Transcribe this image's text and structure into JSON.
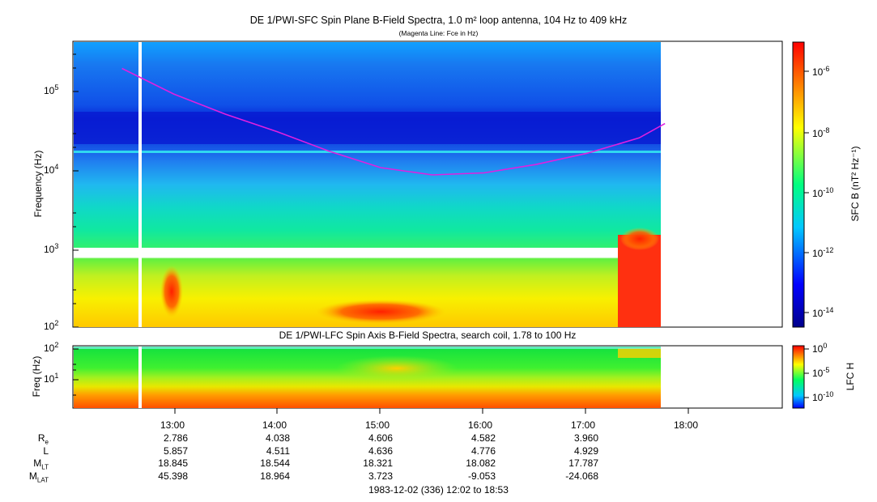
{
  "top_panel": {
    "title": "DE 1/PWI-SFC  Spin Plane B-Field Spectra, 1.0 m² loop antenna, 104 Hz to 409 kHz",
    "subtitle": "(Magenta Line: Fce in Hz)",
    "ylabel": "Frequency (Hz)",
    "yticks": [
      {
        "base": "10",
        "exp": "2"
      },
      {
        "base": "10",
        "exp": "3"
      },
      {
        "base": "10",
        "exp": "4"
      },
      {
        "base": "10",
        "exp": "5"
      }
    ],
    "colorbar_label": "SFC B (nT² Hz⁻¹)",
    "colorbar_ticks": [
      {
        "base": "10",
        "exp": "-6"
      },
      {
        "base": "10",
        "exp": "-8"
      },
      {
        "base": "10",
        "exp": "-10"
      },
      {
        "base": "10",
        "exp": "-12"
      },
      {
        "base": "10",
        "exp": "-14"
      }
    ]
  },
  "bottom_panel": {
    "title": "DE 1/PWI-LFC  Spin Axis B-Field Spectra, search coil, 1.78 to 100 Hz",
    "ylabel": "Freq (Hz)",
    "yticks": [
      {
        "base": "10",
        "exp": "1"
      },
      {
        "base": "10",
        "exp": "2"
      }
    ],
    "colorbar_label": "LFC H",
    "colorbar_ticks": [
      {
        "base": "10",
        "exp": "0"
      },
      {
        "base": "10",
        "exp": "-5"
      },
      {
        "base": "10",
        "exp": "-10"
      }
    ]
  },
  "time_ticks": [
    "13:00",
    "14:00",
    "15:00",
    "16:00",
    "17:00",
    "18:00"
  ],
  "ephemeris": {
    "labels": [
      {
        "main": "R",
        "sub": "e"
      },
      {
        "main": "L",
        "sub": ""
      },
      {
        "main": "M",
        "sub": "LT"
      },
      {
        "main": "M",
        "sub": "LAT"
      }
    ],
    "rows": [
      [
        "2.786",
        "4.038",
        "4.606",
        "4.582",
        "3.960"
      ],
      [
        "5.857",
        "4.511",
        "4.636",
        "4.776",
        "4.929"
      ],
      [
        "18.845",
        "18.544",
        "18.321",
        "18.082",
        "17.787"
      ],
      [
        "45.398",
        "18.964",
        "3.723",
        "-9.053",
        "-24.068"
      ]
    ]
  },
  "footer": "1983-12-02 (336) 12:02 to 18:53",
  "colors": {
    "magenta_line": "#e020e0",
    "colormap": [
      "#00008b",
      "#0000ff",
      "#00c8ff",
      "#00ff80",
      "#ffff00",
      "#ff8000",
      "#ff0000"
    ]
  },
  "chart_data": {
    "type": "heatmap",
    "title": "DE 1/PWI-SFC  Spin Plane B-Field Spectra, 1.0 m² loop antenna, 104 Hz to 409 kHz",
    "x_range": [
      "12:02",
      "18:53"
    ],
    "data_end": "17:45",
    "y_scale": "log",
    "y_range": [
      100,
      409000
    ],
    "fce_line": {
      "name": "Fce in Hz",
      "x": [
        "12:30",
        "13:00",
        "13:30",
        "14:00",
        "14:30",
        "15:00",
        "15:30",
        "16:00",
        "16:30",
        "17:00",
        "17:30",
        "17:45"
      ],
      "y": [
        190000,
        90000,
        50000,
        30000,
        17000,
        10500,
        8500,
        9000,
        11500,
        16000,
        25000,
        38000
      ]
    }
  }
}
